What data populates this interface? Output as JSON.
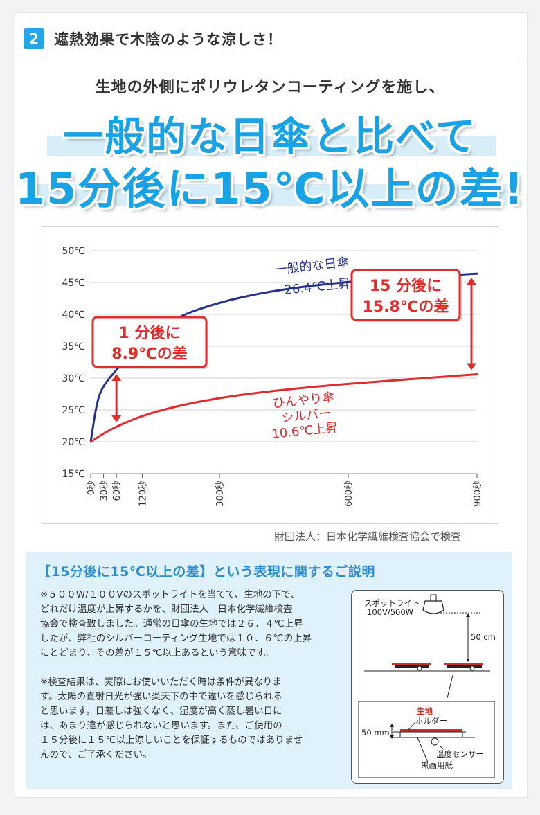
{
  "header": {
    "badge": "2",
    "title": "遮熱効果で木陰のような涼しさ！"
  },
  "intro": "生地の外側にポリウレタンコーティングを施し、",
  "headline": {
    "line1": "一般的な日傘と比べて",
    "line2": "15分後に15℃以上の差!"
  },
  "colors": {
    "accent": "#1aa2e6",
    "blue_series": "#26338e",
    "red_series": "#e32b2b",
    "badge": "#22a6e8"
  },
  "chart_data": {
    "type": "line",
    "y_ticks": [
      "50℃",
      "45℃",
      "40℃",
      "35℃",
      "30℃",
      "25℃",
      "20℃",
      "15℃"
    ],
    "x_ticks": [
      "0秒",
      "30秒",
      "60秒",
      "120秒",
      "300秒",
      "600秒",
      "900秒"
    ],
    "ylim": [
      15,
      50
    ],
    "xlim": [
      0,
      900
    ],
    "grid": true,
    "series": [
      {
        "name": "一般的な日傘",
        "label": [
          "一般的な日傘",
          "26.4℃上昇"
        ],
        "color": "#26338e",
        "x": [
          0,
          15,
          30,
          60,
          120,
          200,
          300,
          400,
          500,
          600,
          700,
          800,
          900
        ],
        "y": [
          20,
          26.5,
          28.9,
          31.3,
          36.0,
          39.6,
          41.9,
          43.4,
          44.4,
          45.1,
          45.6,
          46.0,
          46.4
        ]
      },
      {
        "name": "ひんやり傘シルバー",
        "label": [
          "ひんやり傘",
          "シルバー",
          "10.6℃上昇"
        ],
        "color": "#e32b2b",
        "x": [
          0,
          30,
          60,
          120,
          200,
          300,
          400,
          500,
          600,
          700,
          800,
          900
        ],
        "y": [
          20,
          21.3,
          22.4,
          24.1,
          25.6,
          26.9,
          27.8,
          28.5,
          29.1,
          29.6,
          30.1,
          30.6
        ]
      }
    ],
    "annotations": [
      {
        "text": [
          "1 分後に",
          "8.9℃の差"
        ],
        "at_x": 60,
        "y_from": 22.4,
        "y_to": 31.3
      },
      {
        "text": [
          "15 分後に",
          "15.8℃の差"
        ],
        "at_x": 900,
        "y_from": 30.6,
        "y_to": 46.4
      }
    ]
  },
  "source": "財団法人：日本化学繊維検査協会で検査",
  "explanation": {
    "title": "【15分後に15℃以上の差】という表現に関するご説明",
    "lines1": [
      "※５００W/１００Vのスポットライトを当てて、生地の下で、",
      "どれだけ温度が上昇するかを、財団法人　日本化学繊維検査",
      "協会で検査致しました。通常の日傘の生地では２６．４℃上昇",
      "したが、弊社のシルバーコーティング生地では１０．６℃の上昇",
      "にとどまり、その差が１５℃以上あるという意味です。"
    ],
    "lines2": [
      "※検査結果は、実際にお使いいただく時は条件が異なりま",
      "す。太陽の直射日光が強い炎天下の中で違いを感じられる",
      "と思います。日差しは強くなく、湿度が高く蒸し暑い日に",
      "は、あまり違が感じられないと思います。また、ご使用の",
      "１５分後に１５℃以上涼しいことを保証するものではありませ",
      "んので、ご了承ください。"
    ]
  },
  "diagram": {
    "spotlight": "スポットライト",
    "spec": "100V/500W",
    "distance": "50 cm",
    "fabric": "生地",
    "holder": "ホルダー",
    "height": "50 mm",
    "sensor": "温度センサー",
    "paper": "黒画用紙"
  }
}
